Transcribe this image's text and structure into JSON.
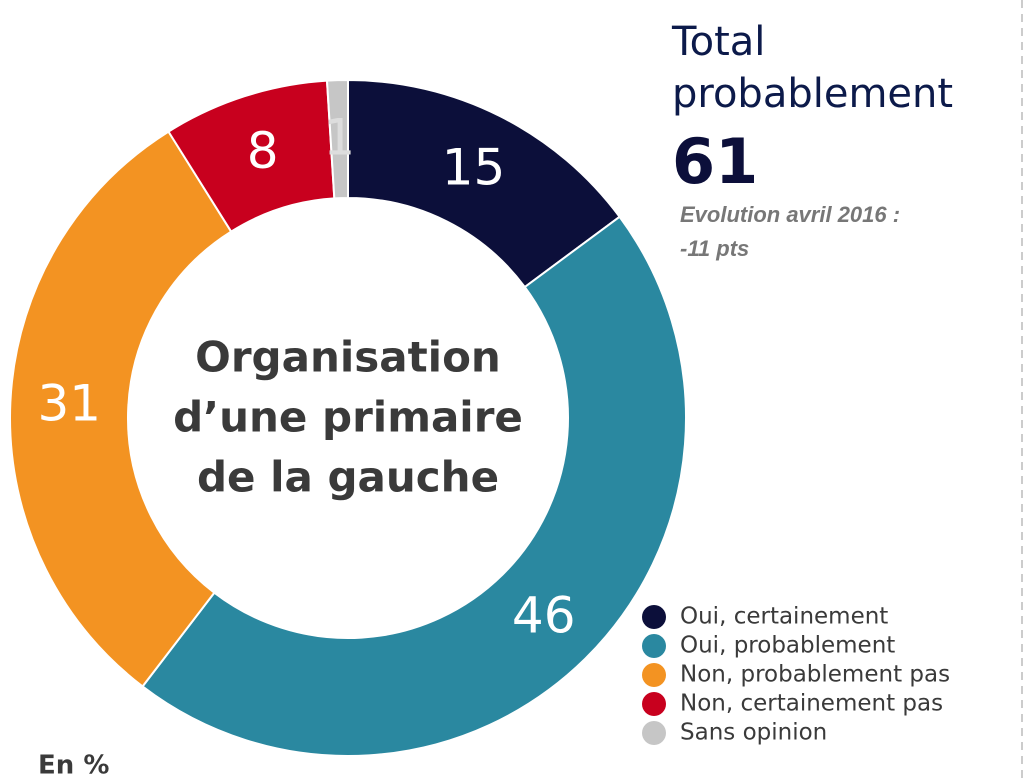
{
  "chart_data": {
    "type": "donut",
    "center_label": [
      "Organisation",
      "d’une primaire",
      "de la gauche"
    ],
    "categories": [
      "Oui, certainement",
      "Oui, probablement",
      "Non, probablement pas",
      "Non, certainement pas",
      "Sans opinion"
    ],
    "values": [
      15,
      46,
      31,
      8,
      1
    ],
    "colors": [
      "#0c0f3a",
      "#2a88a0",
      "#f39322",
      "#c8001e",
      "#c6c6c6"
    ],
    "total_title": [
      "Total",
      "probablement"
    ],
    "total_value": 61,
    "evolution": [
      "Evolution avril 2016 :",
      "-11 pts"
    ],
    "unit_note": "En %"
  }
}
